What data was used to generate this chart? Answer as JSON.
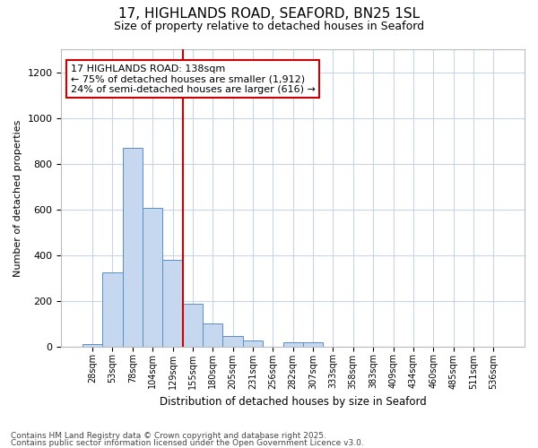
{
  "title_line1": "17, HIGHLANDS ROAD, SEAFORD, BN25 1SL",
  "title_line2": "Size of property relative to detached houses in Seaford",
  "xlabel": "Distribution of detached houses by size in Seaford",
  "ylabel": "Number of detached properties",
  "categories": [
    "28sqm",
    "53sqm",
    "78sqm",
    "104sqm",
    "129sqm",
    "155sqm",
    "180sqm",
    "205sqm",
    "231sqm",
    "256sqm",
    "282sqm",
    "307sqm",
    "333sqm",
    "358sqm",
    "383sqm",
    "409sqm",
    "434sqm",
    "460sqm",
    "485sqm",
    "511sqm",
    "536sqm"
  ],
  "values": [
    10,
    325,
    870,
    605,
    380,
    185,
    100,
    45,
    25,
    0,
    20,
    20,
    0,
    0,
    0,
    0,
    0,
    0,
    0,
    0,
    0
  ],
  "bar_color": "#c5d8f0",
  "bar_edge_color": "#5b8ec4",
  "grid_color": "#c8d4e8",
  "annotation_box_text": "17 HIGHLANDS ROAD: 138sqm\n← 75% of detached houses are smaller (1,912)\n24% of semi-detached houses are larger (616) →",
  "vline_color": "#cc0000",
  "vline_x": 4.5,
  "ylim": [
    0,
    1300
  ],
  "yticks": [
    0,
    200,
    400,
    600,
    800,
    1000,
    1200
  ],
  "footnote1": "Contains HM Land Registry data © Crown copyright and database right 2025.",
  "footnote2": "Contains public sector information licensed under the Open Government Licence v3.0.",
  "bg_color": "#ffffff",
  "plot_bg_color": "#ffffff"
}
